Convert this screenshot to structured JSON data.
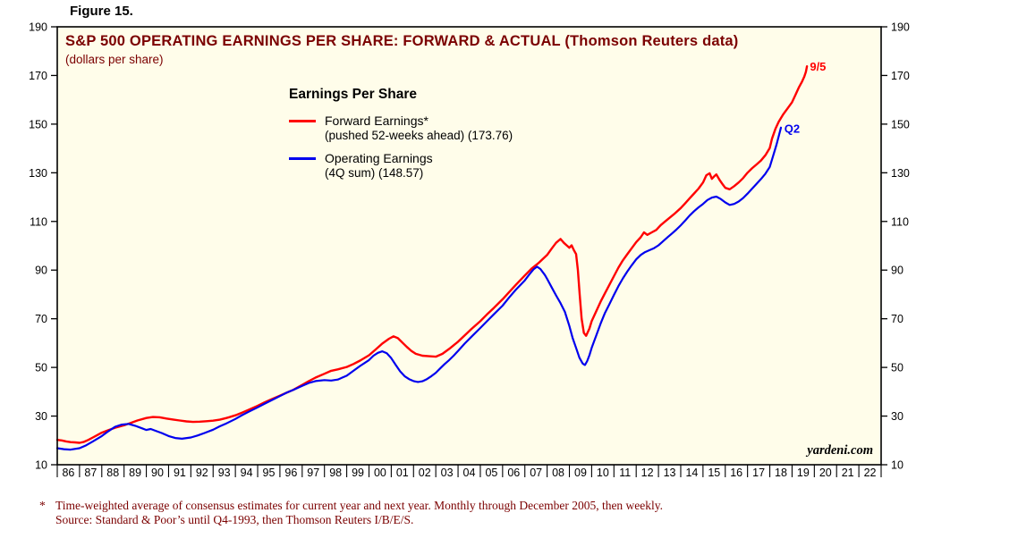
{
  "figure_label": "Figure 15.",
  "chart_data": {
    "type": "line",
    "title": "S&P 500 OPERATING EARNINGS PER SHARE: FORWARD & ACTUAL (Thomson Reuters data)",
    "subtitle": "(dollars per share)",
    "watermark": "yardeni.com",
    "plot_bg": "#fffdea",
    "accent_text_color": "#7b0000",
    "ylim": [
      10,
      190
    ],
    "y_tick_step": 20,
    "xlim": [
      1986,
      2023
    ],
    "x_tick_labels": [
      "86",
      "87",
      "88",
      "89",
      "90",
      "91",
      "92",
      "93",
      "94",
      "95",
      "96",
      "97",
      "98",
      "99",
      "00",
      "01",
      "02",
      "03",
      "04",
      "05",
      "06",
      "07",
      "08",
      "09",
      "10",
      "11",
      "12",
      "13",
      "14",
      "15",
      "16",
      "17",
      "18",
      "19",
      "20",
      "21",
      "22"
    ],
    "legend": {
      "title": "Earnings Per Share",
      "items": [
        {
          "label": "Forward Earnings*",
          "sublabel": "(pushed 52-weeks ahead) (173.76)"
        },
        {
          "label": "Operating Earnings",
          "sublabel": "(4Q sum) (148.57)"
        }
      ]
    },
    "annotations": [
      {
        "text": "9/5",
        "color": "#ff0000",
        "x": 2019.8,
        "y": 172
      },
      {
        "text": "Q2",
        "color": "#0000ee",
        "x": 2018.65,
        "y": 146.5
      }
    ],
    "series": [
      {
        "name": "Forward Earnings (pushed 52-weeks ahead)",
        "color": "#ff0000",
        "width": 2.4,
        "last_value": 173.76,
        "last_label": "9/5",
        "points": [
          [
            1986.0,
            20.2
          ],
          [
            1986.2,
            20.0
          ],
          [
            1986.4,
            19.6
          ],
          [
            1986.6,
            19.3
          ],
          [
            1986.8,
            19.2
          ],
          [
            1987.0,
            19.0
          ],
          [
            1987.2,
            19.4
          ],
          [
            1987.4,
            20.2
          ],
          [
            1987.6,
            21.2
          ],
          [
            1987.8,
            22.2
          ],
          [
            1988.0,
            23.2
          ],
          [
            1988.3,
            24.2
          ],
          [
            1988.6,
            25.2
          ],
          [
            1989.0,
            26.2
          ],
          [
            1989.3,
            27.2
          ],
          [
            1989.6,
            28.2
          ],
          [
            1990.0,
            29.2
          ],
          [
            1990.3,
            29.6
          ],
          [
            1990.6,
            29.5
          ],
          [
            1990.9,
            29.0
          ],
          [
            1991.2,
            28.6
          ],
          [
            1991.5,
            28.2
          ],
          [
            1991.8,
            27.8
          ],
          [
            1992.1,
            27.6
          ],
          [
            1992.4,
            27.7
          ],
          [
            1992.7,
            27.9
          ],
          [
            1993.0,
            28.1
          ],
          [
            1993.3,
            28.5
          ],
          [
            1993.6,
            29.2
          ],
          [
            1994.0,
            30.3
          ],
          [
            1994.3,
            31.4
          ],
          [
            1994.6,
            32.6
          ],
          [
            1995.0,
            34.2
          ],
          [
            1995.3,
            35.6
          ],
          [
            1995.6,
            36.8
          ],
          [
            1996.0,
            38.4
          ],
          [
            1996.3,
            39.6
          ],
          [
            1996.6,
            40.8
          ],
          [
            1997.0,
            42.8
          ],
          [
            1997.3,
            44.4
          ],
          [
            1997.6,
            45.8
          ],
          [
            1998.0,
            47.4
          ],
          [
            1998.3,
            48.6
          ],
          [
            1998.6,
            49.2
          ],
          [
            1999.0,
            50.2
          ],
          [
            1999.3,
            51.4
          ],
          [
            1999.6,
            52.8
          ],
          [
            2000.0,
            55.0
          ],
          [
            2000.3,
            57.4
          ],
          [
            2000.6,
            59.8
          ],
          [
            2000.9,
            61.8
          ],
          [
            2001.1,
            62.8
          ],
          [
            2001.3,
            62.0
          ],
          [
            2001.5,
            60.2
          ],
          [
            2001.7,
            58.4
          ],
          [
            2001.9,
            56.8
          ],
          [
            2002.1,
            55.6
          ],
          [
            2002.4,
            54.8
          ],
          [
            2002.7,
            54.6
          ],
          [
            2003.0,
            54.4
          ],
          [
            2003.3,
            55.6
          ],
          [
            2003.6,
            57.6
          ],
          [
            2004.0,
            60.6
          ],
          [
            2004.3,
            63.2
          ],
          [
            2004.6,
            65.8
          ],
          [
            2005.0,
            69.0
          ],
          [
            2005.3,
            71.8
          ],
          [
            2005.6,
            74.4
          ],
          [
            2006.0,
            78.0
          ],
          [
            2006.3,
            81.0
          ],
          [
            2006.6,
            84.0
          ],
          [
            2007.0,
            87.8
          ],
          [
            2007.3,
            90.6
          ],
          [
            2007.6,
            92.8
          ],
          [
            2008.0,
            96.2
          ],
          [
            2008.2,
            98.8
          ],
          [
            2008.4,
            101.2
          ],
          [
            2008.6,
            102.8
          ],
          [
            2008.75,
            101.2
          ],
          [
            2008.9,
            100.0
          ],
          [
            2009.0,
            99.2
          ],
          [
            2009.1,
            100.2
          ],
          [
            2009.2,
            98.2
          ],
          [
            2009.3,
            96.6
          ],
          [
            2009.38,
            90.0
          ],
          [
            2009.46,
            80.0
          ],
          [
            2009.55,
            70.0
          ],
          [
            2009.65,
            64.2
          ],
          [
            2009.75,
            63.0
          ],
          [
            2009.9,
            66.0
          ],
          [
            2010.0,
            69.0
          ],
          [
            2010.2,
            73.0
          ],
          [
            2010.4,
            77.0
          ],
          [
            2010.6,
            80.5
          ],
          [
            2010.8,
            84.0
          ],
          [
            2011.0,
            87.5
          ],
          [
            2011.2,
            91.0
          ],
          [
            2011.4,
            94.0
          ],
          [
            2011.6,
            96.5
          ],
          [
            2011.8,
            99.0
          ],
          [
            2012.0,
            101.5
          ],
          [
            2012.2,
            103.5
          ],
          [
            2012.35,
            105.5
          ],
          [
            2012.5,
            104.5
          ],
          [
            2012.7,
            105.5
          ],
          [
            2012.9,
            106.5
          ],
          [
            2013.1,
            108.5
          ],
          [
            2013.3,
            110.0
          ],
          [
            2013.5,
            111.5
          ],
          [
            2013.7,
            113.0
          ],
          [
            2014.0,
            115.5
          ],
          [
            2014.2,
            117.5
          ],
          [
            2014.4,
            119.5
          ],
          [
            2014.6,
            121.5
          ],
          [
            2014.8,
            123.5
          ],
          [
            2015.0,
            126.0
          ],
          [
            2015.15,
            129.0
          ],
          [
            2015.3,
            129.8
          ],
          [
            2015.4,
            127.5
          ],
          [
            2015.5,
            128.5
          ],
          [
            2015.6,
            129.3
          ],
          [
            2015.75,
            127.0
          ],
          [
            2015.9,
            125.0
          ],
          [
            2016.0,
            123.8
          ],
          [
            2016.2,
            123.2
          ],
          [
            2016.4,
            124.5
          ],
          [
            2016.6,
            126.0
          ],
          [
            2016.8,
            127.8
          ],
          [
            2017.0,
            130.0
          ],
          [
            2017.2,
            131.8
          ],
          [
            2017.4,
            133.4
          ],
          [
            2017.6,
            135.0
          ],
          [
            2017.8,
            137.2
          ],
          [
            2018.0,
            140.2
          ],
          [
            2018.1,
            144.0
          ],
          [
            2018.25,
            148.0
          ],
          [
            2018.4,
            151.0
          ],
          [
            2018.6,
            154.0
          ],
          [
            2018.8,
            156.5
          ],
          [
            2019.0,
            159.0
          ],
          [
            2019.15,
            162.0
          ],
          [
            2019.3,
            165.0
          ],
          [
            2019.45,
            167.5
          ],
          [
            2019.55,
            169.5
          ],
          [
            2019.62,
            171.5
          ],
          [
            2019.67,
            173.76
          ]
        ]
      },
      {
        "name": "Operating Earnings (4Q sum)",
        "color": "#0000ee",
        "width": 2.2,
        "last_value": 148.57,
        "last_label": "Q2",
        "points": [
          [
            1986.0,
            16.8
          ],
          [
            1986.3,
            16.4
          ],
          [
            1986.6,
            16.2
          ],
          [
            1987.0,
            16.8
          ],
          [
            1987.3,
            18.0
          ],
          [
            1987.6,
            19.6
          ],
          [
            1988.0,
            21.8
          ],
          [
            1988.3,
            23.8
          ],
          [
            1988.6,
            25.6
          ],
          [
            1988.9,
            26.5
          ],
          [
            1989.2,
            26.8
          ],
          [
            1989.5,
            26.0
          ],
          [
            1989.8,
            25.0
          ],
          [
            1990.0,
            24.3
          ],
          [
            1990.2,
            24.7
          ],
          [
            1990.4,
            24.0
          ],
          [
            1990.7,
            23.0
          ],
          [
            1991.0,
            21.8
          ],
          [
            1991.3,
            21.0
          ],
          [
            1991.6,
            20.7
          ],
          [
            1992.0,
            21.2
          ],
          [
            1992.3,
            22.0
          ],
          [
            1992.6,
            23.0
          ],
          [
            1993.0,
            24.4
          ],
          [
            1993.3,
            25.8
          ],
          [
            1993.6,
            27.0
          ],
          [
            1994.0,
            28.8
          ],
          [
            1994.3,
            30.4
          ],
          [
            1994.6,
            31.8
          ],
          [
            1995.0,
            33.6
          ],
          [
            1995.3,
            35.0
          ],
          [
            1995.6,
            36.4
          ],
          [
            1996.0,
            38.2
          ],
          [
            1996.3,
            39.6
          ],
          [
            1996.6,
            40.8
          ],
          [
            1997.0,
            42.4
          ],
          [
            1997.3,
            43.6
          ],
          [
            1997.6,
            44.4
          ],
          [
            1998.0,
            44.8
          ],
          [
            1998.3,
            44.6
          ],
          [
            1998.6,
            45.0
          ],
          [
            1999.0,
            46.6
          ],
          [
            1999.3,
            48.6
          ],
          [
            1999.6,
            50.6
          ],
          [
            2000.0,
            53.0
          ],
          [
            2000.2,
            54.8
          ],
          [
            2000.4,
            56.0
          ],
          [
            2000.6,
            56.6
          ],
          [
            2000.8,
            55.8
          ],
          [
            2001.0,
            53.8
          ],
          [
            2001.2,
            51.0
          ],
          [
            2001.4,
            48.4
          ],
          [
            2001.6,
            46.4
          ],
          [
            2001.8,
            45.2
          ],
          [
            2002.0,
            44.4
          ],
          [
            2002.2,
            44.0
          ],
          [
            2002.4,
            44.3
          ],
          [
            2002.6,
            45.2
          ],
          [
            2002.8,
            46.4
          ],
          [
            2003.0,
            47.8
          ],
          [
            2003.2,
            49.6
          ],
          [
            2003.4,
            51.4
          ],
          [
            2003.6,
            53.0
          ],
          [
            2003.8,
            54.8
          ],
          [
            2004.0,
            56.8
          ],
          [
            2004.3,
            59.8
          ],
          [
            2004.6,
            62.6
          ],
          [
            2005.0,
            66.2
          ],
          [
            2005.3,
            69.0
          ],
          [
            2005.6,
            71.8
          ],
          [
            2006.0,
            75.4
          ],
          [
            2006.3,
            78.8
          ],
          [
            2006.6,
            82.0
          ],
          [
            2007.0,
            85.8
          ],
          [
            2007.2,
            88.2
          ],
          [
            2007.4,
            90.4
          ],
          [
            2007.55,
            91.4
          ],
          [
            2007.7,
            90.4
          ],
          [
            2007.9,
            88.0
          ],
          [
            2008.0,
            86.4
          ],
          [
            2008.2,
            83.0
          ],
          [
            2008.4,
            79.6
          ],
          [
            2008.6,
            76.4
          ],
          [
            2008.8,
            72.8
          ],
          [
            2009.0,
            67.0
          ],
          [
            2009.15,
            62.0
          ],
          [
            2009.3,
            58.0
          ],
          [
            2009.45,
            54.0
          ],
          [
            2009.6,
            51.6
          ],
          [
            2009.7,
            51.0
          ],
          [
            2009.8,
            52.6
          ],
          [
            2009.9,
            55.0
          ],
          [
            2010.0,
            58.0
          ],
          [
            2010.2,
            63.0
          ],
          [
            2010.4,
            68.0
          ],
          [
            2010.6,
            72.4
          ],
          [
            2010.8,
            76.0
          ],
          [
            2011.0,
            79.8
          ],
          [
            2011.2,
            83.4
          ],
          [
            2011.4,
            86.6
          ],
          [
            2011.6,
            89.4
          ],
          [
            2011.8,
            92.0
          ],
          [
            2012.0,
            94.4
          ],
          [
            2012.2,
            96.2
          ],
          [
            2012.4,
            97.4
          ],
          [
            2012.6,
            98.2
          ],
          [
            2012.8,
            99.0
          ],
          [
            2013.0,
            100.2
          ],
          [
            2013.2,
            101.8
          ],
          [
            2013.4,
            103.4
          ],
          [
            2013.6,
            105.0
          ],
          [
            2013.8,
            106.6
          ],
          [
            2014.0,
            108.4
          ],
          [
            2014.2,
            110.4
          ],
          [
            2014.4,
            112.4
          ],
          [
            2014.6,
            114.2
          ],
          [
            2014.8,
            115.8
          ],
          [
            2015.0,
            117.2
          ],
          [
            2015.2,
            118.8
          ],
          [
            2015.4,
            119.8
          ],
          [
            2015.6,
            120.2
          ],
          [
            2015.8,
            119.2
          ],
          [
            2016.0,
            117.8
          ],
          [
            2016.2,
            116.8
          ],
          [
            2016.4,
            117.2
          ],
          [
            2016.6,
            118.2
          ],
          [
            2016.8,
            119.6
          ],
          [
            2017.0,
            121.4
          ],
          [
            2017.2,
            123.4
          ],
          [
            2017.4,
            125.4
          ],
          [
            2017.6,
            127.4
          ],
          [
            2017.8,
            129.6
          ],
          [
            2018.0,
            132.4
          ],
          [
            2018.15,
            137.0
          ],
          [
            2018.3,
            141.5
          ],
          [
            2018.4,
            145.0
          ],
          [
            2018.5,
            148.57
          ]
        ]
      }
    ]
  },
  "footnote": {
    "marker": "*",
    "line1": "Time-weighted average of consensus estimates for current year and next year. Monthly through December 2005, then weekly.",
    "line2": "Source: Standard & Poor’s until Q4-1993, then Thomson Reuters I/B/E/S."
  }
}
